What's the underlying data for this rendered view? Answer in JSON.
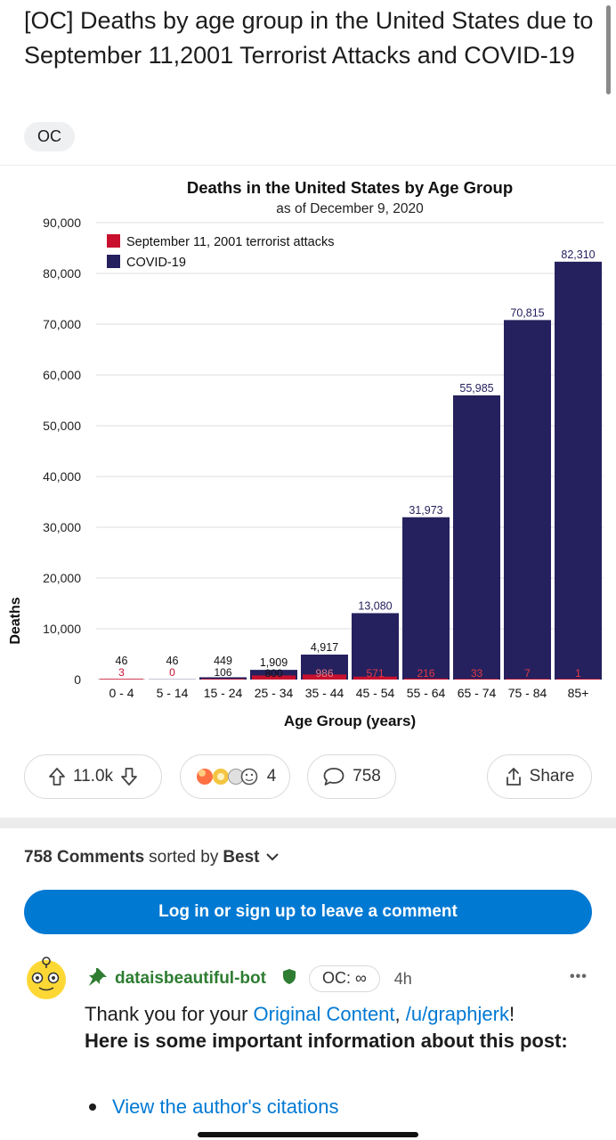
{
  "post": {
    "title": "[OC] Deaths by age group in the United States due to September 11,2001 Terrorist Attacks and COVID-19",
    "flair": "OC"
  },
  "chart_data": {
    "type": "bar",
    "title": "Deaths in the United States by Age Group",
    "subtitle": "as of December 9, 2020",
    "xlabel": "Age Group (years)",
    "ylabel": "Deaths",
    "ylim": [
      0,
      90000
    ],
    "yticks": [
      0,
      10000,
      20000,
      30000,
      40000,
      50000,
      60000,
      70000,
      80000,
      90000
    ],
    "ytick_labels": [
      "0",
      "10,000",
      "20,000",
      "30,000",
      "40,000",
      "50,000",
      "60,000",
      "70,000",
      "80,000",
      "90,000"
    ],
    "grid": true,
    "legend_position": "top-left",
    "categories": [
      "0 - 4",
      "5 - 14",
      "15 - 24",
      "25 - 34",
      "35 - 44",
      "45 - 54",
      "55 - 64",
      "65 - 74",
      "75 - 84",
      "85+"
    ],
    "series": [
      {
        "name": "September 11, 2001 terrorist attacks",
        "color": "#c8102e",
        "values": [
          3,
          0,
          106,
          800,
          986,
          571,
          216,
          33,
          7,
          1
        ],
        "labels": [
          "3",
          "0",
          "106",
          "800",
          "986",
          "571",
          "216",
          "33",
          "7",
          "1"
        ]
      },
      {
        "name": "COVID-19",
        "color": "#25215e",
        "values": [
          46,
          46,
          449,
          1909,
          4917,
          13080,
          31973,
          55985,
          70815,
          82310
        ],
        "labels": [
          "46",
          "46",
          "449",
          "1,909",
          "4,917",
          "13,080",
          "31,973",
          "55,985",
          "70,815",
          "82,310"
        ]
      }
    ]
  },
  "actions": {
    "upvotes": "11.0k",
    "awards_count": "4",
    "comments_count": "758",
    "share_label": "Share"
  },
  "comments": {
    "count_label": "758 Comments",
    "sorted_by_label": "sorted by",
    "sort_value": "Best",
    "login_prompt": "Log in or sign up to leave a comment"
  },
  "top_comment": {
    "username": "dataisbeautiful-bot",
    "badge": "OC: ∞",
    "time": "4h",
    "text_before_link": "Thank you for your ",
    "link_text": "Original Content",
    "text_between": ", ",
    "user_link": "/u/graphjerk",
    "text_after_link": "!",
    "bold_text": "Here is some important information about this post:",
    "bullet_link": "View the author's citations",
    "more_label": "•••"
  }
}
